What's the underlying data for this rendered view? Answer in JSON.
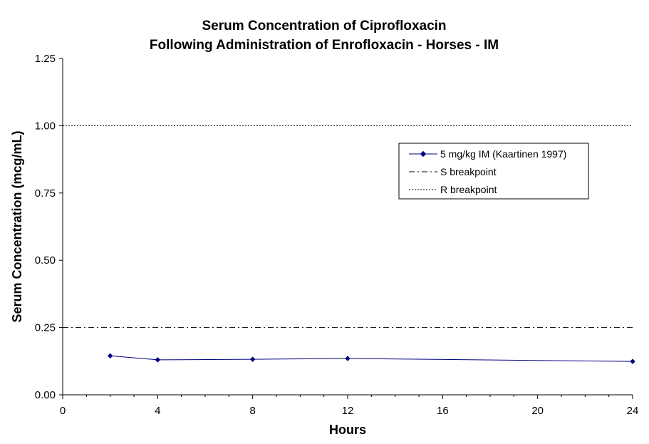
{
  "chart_data": {
    "type": "line",
    "title": "Serum Concentration of Ciprofloxacin",
    "subtitle": "Following Administration of Enrofloxacin - Horses - IM",
    "xlabel": "Hours",
    "ylabel": "Serum Concentration (mcg/mL)",
    "xlim": [
      0,
      24
    ],
    "ylim": [
      0,
      1.25
    ],
    "x_ticks": [
      0,
      4,
      8,
      12,
      16,
      20,
      24
    ],
    "x_tick_labels": [
      "0",
      "4",
      "8",
      "12",
      "16",
      "20",
      "24"
    ],
    "x_minor_step": 1,
    "y_ticks": [
      0,
      0.25,
      0.5,
      0.75,
      1.0,
      1.25
    ],
    "y_tick_labels": [
      "0.00",
      "0.25",
      "0.50",
      "0.75",
      "1.00",
      "1.25"
    ],
    "grid": false,
    "legend_position": "top-right",
    "series": [
      {
        "name": "5 mg/kg IM (Kaartinen 1997)",
        "style": "solid-with-diamond-markers",
        "color": "#000080",
        "x": [
          2,
          4,
          8,
          12,
          24
        ],
        "values": [
          0.145,
          0.13,
          0.132,
          0.135,
          0.124
        ]
      },
      {
        "name": "S breakpoint",
        "style": "dash-dot",
        "color": "#000000",
        "x": [
          0,
          24
        ],
        "values": [
          0.25,
          0.25
        ]
      },
      {
        "name": "R breakpoint",
        "style": "dotted",
        "color": "#000000",
        "x": [
          0,
          24
        ],
        "values": [
          1.0,
          1.0
        ]
      }
    ]
  }
}
